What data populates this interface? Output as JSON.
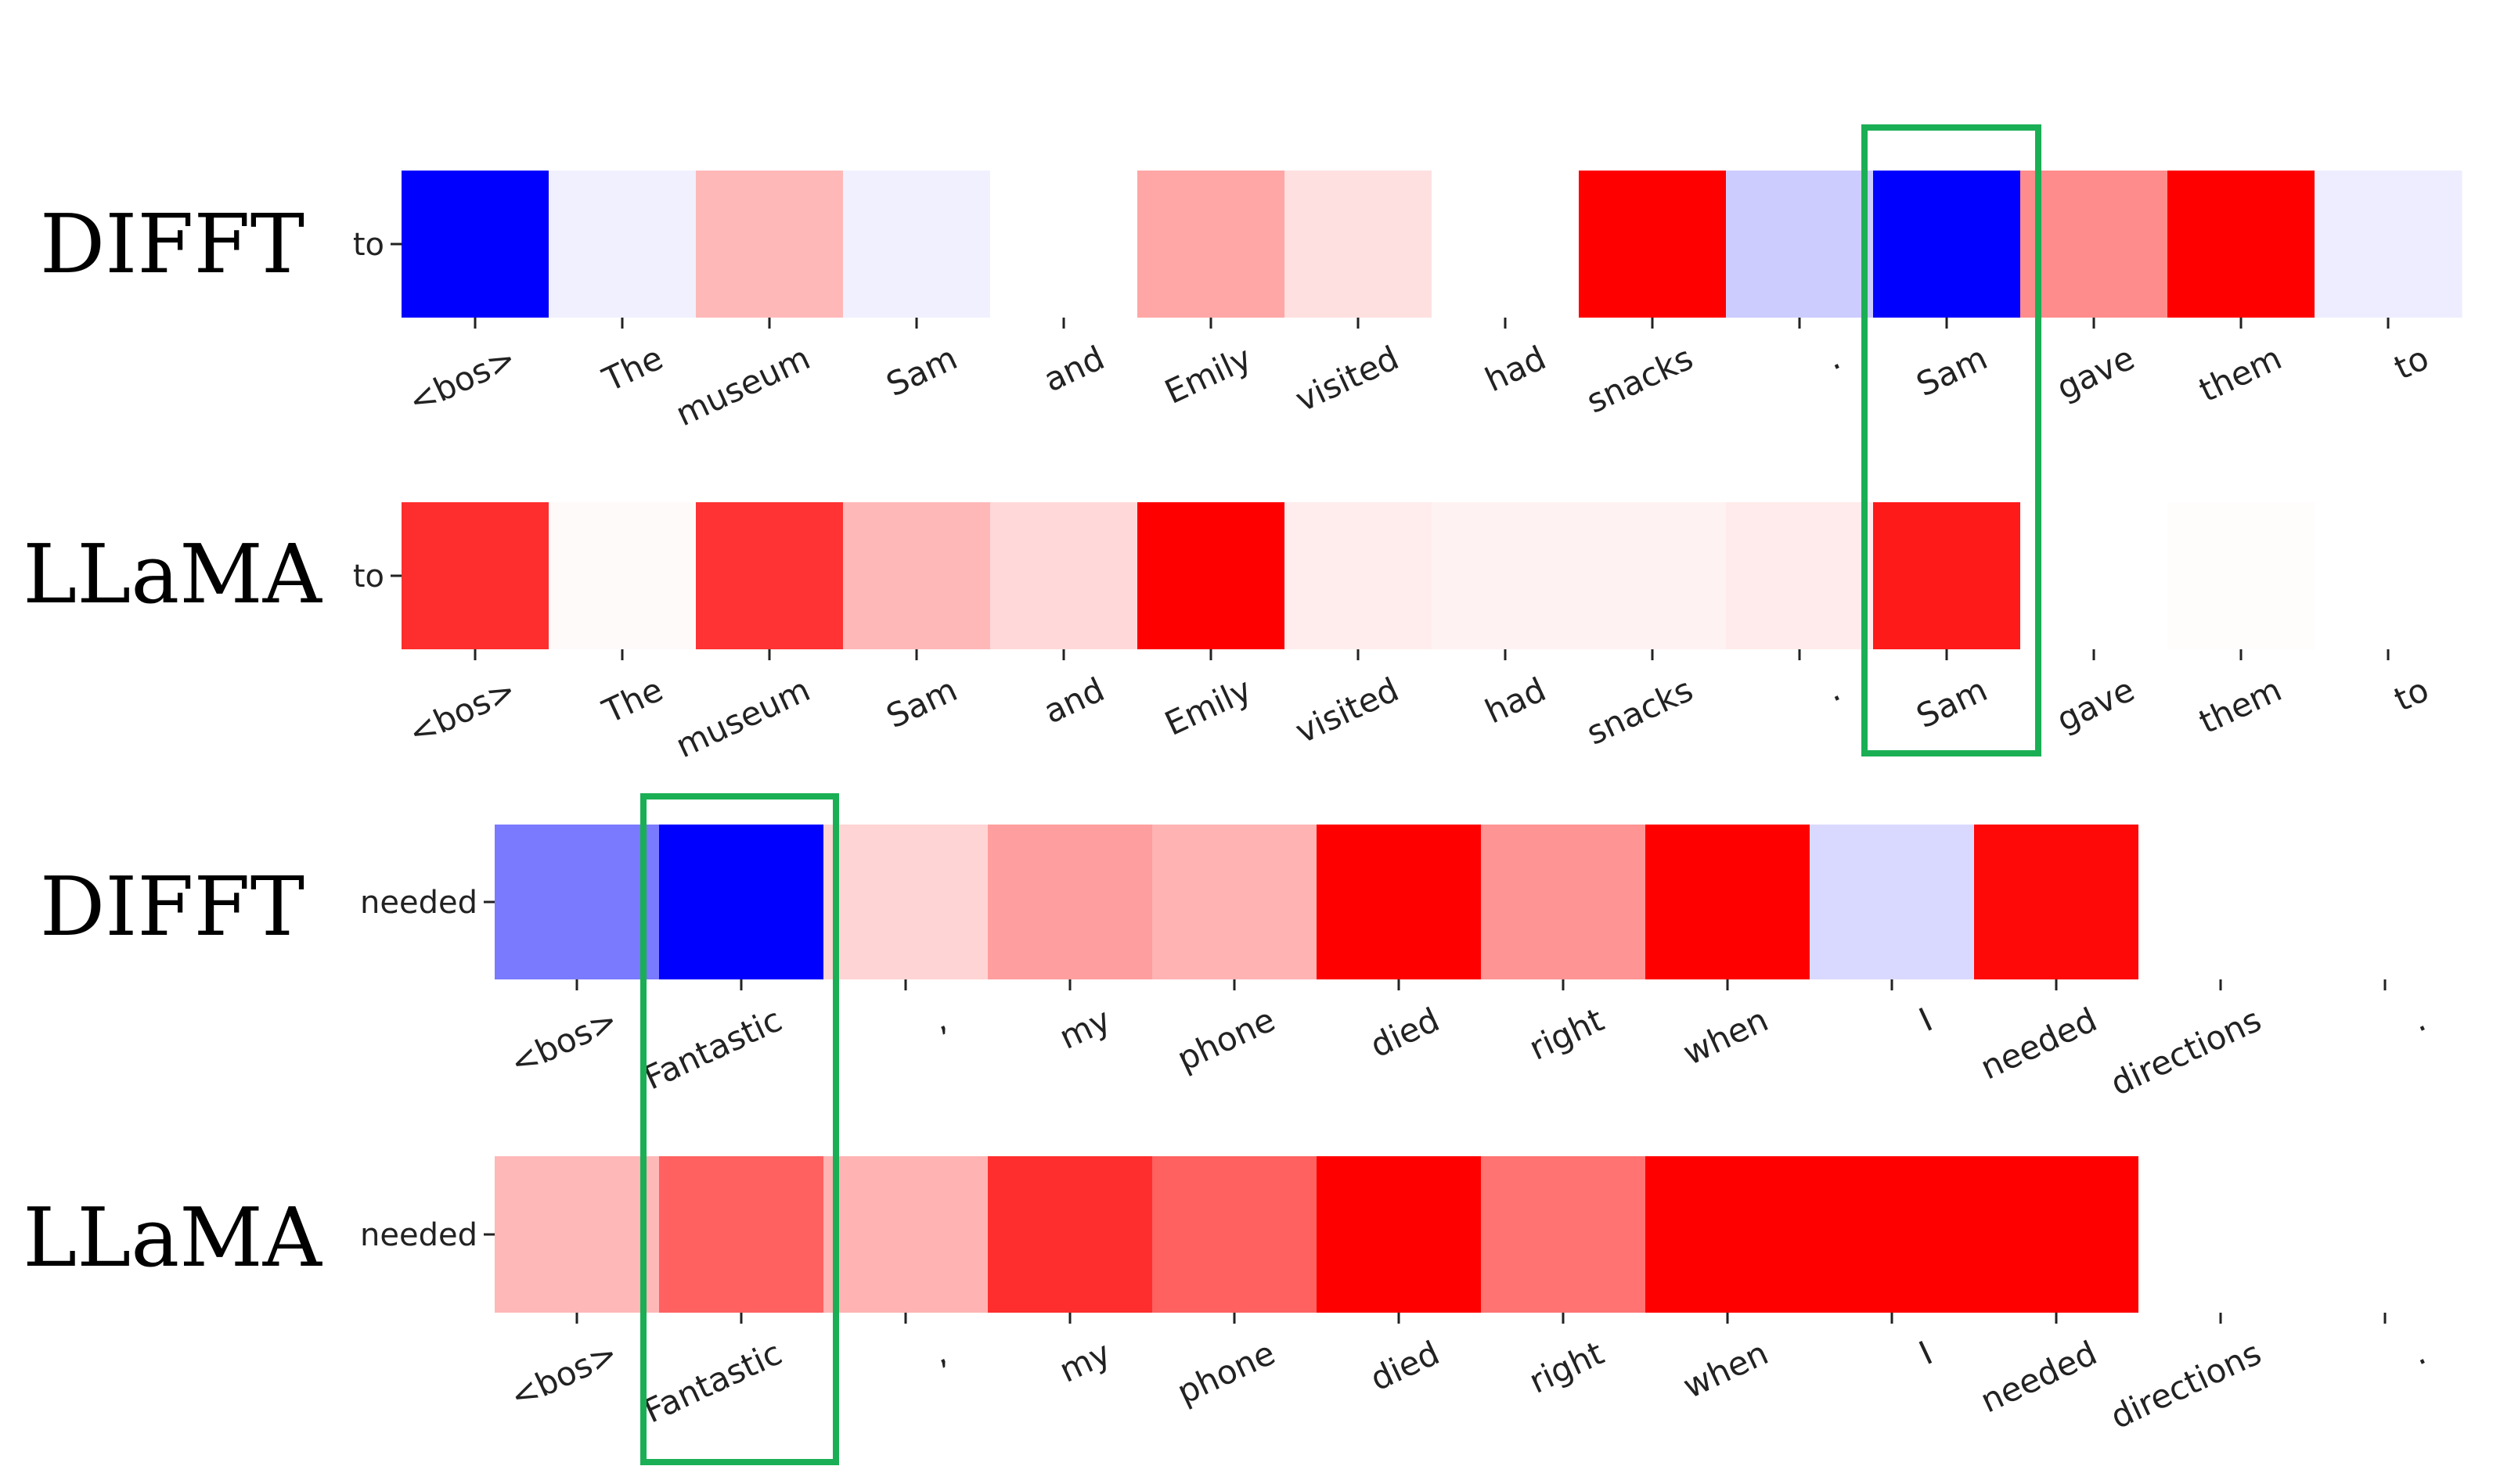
{
  "colors": {
    "negative": "#0000ff",
    "positive": "#ff0000",
    "neutral": "#ffffff",
    "highlight_box": "#1aaf54"
  },
  "chart_data": [
    {
      "type": "heatmap",
      "model": "DIFFT",
      "y_token": "to",
      "x_tokens": [
        "<bos>",
        "The",
        "museum",
        "Sam",
        "and",
        "Emily",
        "visited",
        "had",
        "snacks",
        ".",
        "Sam",
        "gave",
        "them",
        "to"
      ],
      "values": [
        -1.0,
        -0.06,
        0.28,
        -0.06,
        0.0,
        0.35,
        0.12,
        0.0,
        1.0,
        -0.2,
        -1.0,
        0.45,
        1.0,
        -0.07
      ],
      "vmin": -1,
      "vmax": 1,
      "highlight_token": "Sam"
    },
    {
      "type": "heatmap",
      "model": "LLaMA",
      "y_token": "to",
      "x_tokens": [
        "<bos>",
        "The",
        "museum",
        "Sam",
        "and",
        "Emily",
        "visited",
        "had",
        "snacks",
        ".",
        "Sam",
        "gave",
        "them",
        "to"
      ],
      "values": [
        0.82,
        0.02,
        0.8,
        0.28,
        0.15,
        1.0,
        0.07,
        0.05,
        0.05,
        0.08,
        0.9,
        0.0,
        0.01,
        0.0
      ],
      "vmin": -1,
      "vmax": 1,
      "highlight_token": "Sam"
    },
    {
      "type": "heatmap",
      "model": "DIFFT",
      "y_token": "needed",
      "x_tokens": [
        "<bos>",
        "Fantastic",
        ",",
        "my",
        "phone",
        "died",
        "right",
        "when",
        "I",
        "needed",
        "directions",
        "."
      ],
      "values": [
        -0.52,
        -1.0,
        0.17,
        0.38,
        0.3,
        1.0,
        0.42,
        1.0,
        -0.15,
        0.97,
        0.0,
        0.0
      ],
      "vmin": -1,
      "vmax": 1,
      "highlight_token": "Fantastic"
    },
    {
      "type": "heatmap",
      "model": "LLaMA",
      "y_token": "needed",
      "x_tokens": [
        "<bos>",
        "Fantastic",
        ",",
        "my",
        "phone",
        "died",
        "right",
        "when",
        "I",
        "needed",
        "directions",
        "."
      ],
      "values": [
        0.28,
        0.62,
        0.3,
        0.82,
        0.62,
        1.0,
        0.55,
        1.0,
        1.0,
        1.0,
        0.0,
        0.0
      ],
      "vmin": -1,
      "vmax": 1,
      "highlight_token": "Fantastic"
    }
  ]
}
